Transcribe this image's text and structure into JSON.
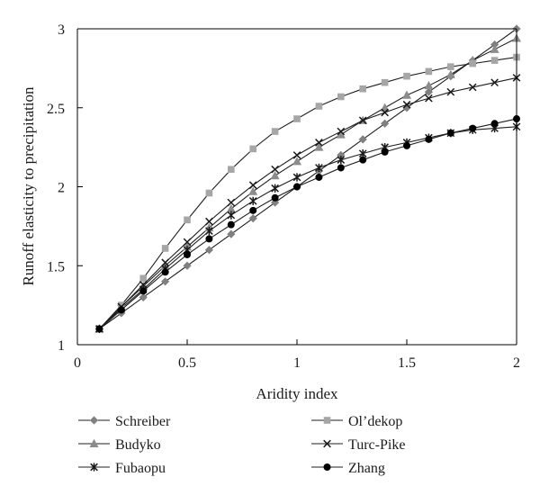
{
  "chart_data": {
    "type": "line",
    "title": "",
    "xlabel": "Aridity index",
    "ylabel": "Runoff elasticity to precipitation",
    "xlim": [
      0,
      2
    ],
    "ylim": [
      1,
      3
    ],
    "x_ticks": [
      0,
      0.5,
      1,
      1.5,
      2
    ],
    "x_tick_labels": [
      "0",
      "0.5",
      "1",
      "1.5",
      "2"
    ],
    "y_ticks": [
      1,
      1.5,
      2,
      2.5,
      3
    ],
    "y_tick_labels": [
      "1",
      "1.5",
      "2",
      "2.5",
      "3"
    ],
    "grid": false,
    "legend_position": "bottom",
    "x": [
      0.1,
      0.2,
      0.3,
      0.4,
      0.5,
      0.6,
      0.7,
      0.8,
      0.9,
      1.0,
      1.1,
      1.2,
      1.3,
      1.4,
      1.5,
      1.6,
      1.7,
      1.8,
      1.9,
      2.0
    ],
    "series": [
      {
        "name": "Schreiber",
        "marker": "diamond",
        "color": "#808080",
        "values": [
          1.1,
          1.2,
          1.3,
          1.4,
          1.5,
          1.6,
          1.7,
          1.8,
          1.9,
          2.0,
          2.1,
          2.2,
          2.3,
          2.4,
          2.5,
          2.6,
          2.7,
          2.8,
          2.9,
          3.0
        ]
      },
      {
        "name": "Budyko",
        "marker": "triangle",
        "color": "#8c8c8c",
        "values": [
          1.1,
          1.24,
          1.37,
          1.5,
          1.62,
          1.74,
          1.86,
          1.97,
          2.07,
          2.16,
          2.25,
          2.33,
          2.42,
          2.5,
          2.58,
          2.64,
          2.71,
          2.8,
          2.87,
          2.94
        ]
      },
      {
        "name": "Fubaopu",
        "marker": "asterisk",
        "color": "#1a1a1a",
        "values": [
          1.1,
          1.23,
          1.35,
          1.48,
          1.6,
          1.72,
          1.82,
          1.91,
          1.99,
          2.06,
          2.12,
          2.17,
          2.21,
          2.25,
          2.28,
          2.31,
          2.34,
          2.36,
          2.37,
          2.38
        ]
      },
      {
        "name": "Ol’dekop",
        "marker": "square",
        "color": "#a6a6a6",
        "values": [
          1.1,
          1.25,
          1.42,
          1.61,
          1.79,
          1.96,
          2.11,
          2.24,
          2.35,
          2.43,
          2.51,
          2.57,
          2.62,
          2.66,
          2.7,
          2.73,
          2.76,
          2.78,
          2.8,
          2.82
        ]
      },
      {
        "name": "Turc-Pike",
        "marker": "x",
        "color": "#1a1a1a",
        "values": [
          1.1,
          1.24,
          1.38,
          1.52,
          1.65,
          1.78,
          1.9,
          2.01,
          2.11,
          2.2,
          2.28,
          2.35,
          2.42,
          2.47,
          2.52,
          2.56,
          2.6,
          2.63,
          2.66,
          2.69
        ]
      },
      {
        "name": "Zhang",
        "marker": "circle",
        "color": "#000000",
        "values": [
          1.1,
          1.22,
          1.34,
          1.46,
          1.57,
          1.67,
          1.76,
          1.85,
          1.93,
          2.0,
          2.06,
          2.12,
          2.17,
          2.22,
          2.26,
          2.3,
          2.34,
          2.37,
          2.4,
          2.43
        ]
      }
    ]
  }
}
